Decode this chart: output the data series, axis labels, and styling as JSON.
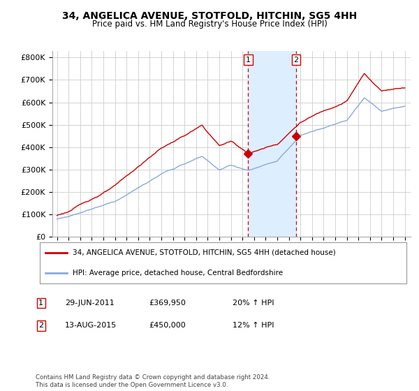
{
  "title": "34, ANGELICA AVENUE, STOTFOLD, HITCHIN, SG5 4HH",
  "subtitle": "Price paid vs. HM Land Registry's House Price Index (HPI)",
  "ylabel_ticks": [
    "£0",
    "£100K",
    "£200K",
    "£300K",
    "£400K",
    "£500K",
    "£600K",
    "£700K",
    "£800K"
  ],
  "ytick_vals": [
    0,
    100000,
    200000,
    300000,
    400000,
    500000,
    600000,
    700000,
    800000
  ],
  "ylim": [
    0,
    830000
  ],
  "transaction1_x": 2011.495,
  "transaction1_y": 369950,
  "transaction2_x": 2015.617,
  "transaction2_y": 450000,
  "shade_x1": 2011.495,
  "shade_x2": 2015.617,
  "line1_color": "#cc0000",
  "line2_color": "#88aadd",
  "shade_color": "#ddeeff",
  "vline_color": "#cc0000",
  "dot_color": "#cc0000",
  "legend1_label": "34, ANGELICA AVENUE, STOTFOLD, HITCHIN, SG5 4HH (detached house)",
  "legend2_label": "HPI: Average price, detached house, Central Bedfordshire",
  "table_rows": [
    {
      "num": "1",
      "date": "29-JUN-2011",
      "price": "£369,950",
      "hpi": "20% ↑ HPI"
    },
    {
      "num": "2",
      "date": "13-AUG-2015",
      "price": "£450,000",
      "hpi": "12% ↑ HPI"
    }
  ],
  "footnote": "Contains HM Land Registry data © Crown copyright and database right 2024.\nThis data is licensed under the Open Government Licence v3.0.",
  "bg_color": "#ffffff",
  "grid_color": "#cccccc",
  "x_tick_years": [
    1995,
    1996,
    1997,
    1998,
    1999,
    2000,
    2001,
    2002,
    2003,
    2004,
    2005,
    2006,
    2007,
    2008,
    2009,
    2010,
    2011,
    2012,
    2013,
    2014,
    2015,
    2016,
    2017,
    2018,
    2019,
    2020,
    2021,
    2022,
    2023,
    2024,
    2025
  ]
}
